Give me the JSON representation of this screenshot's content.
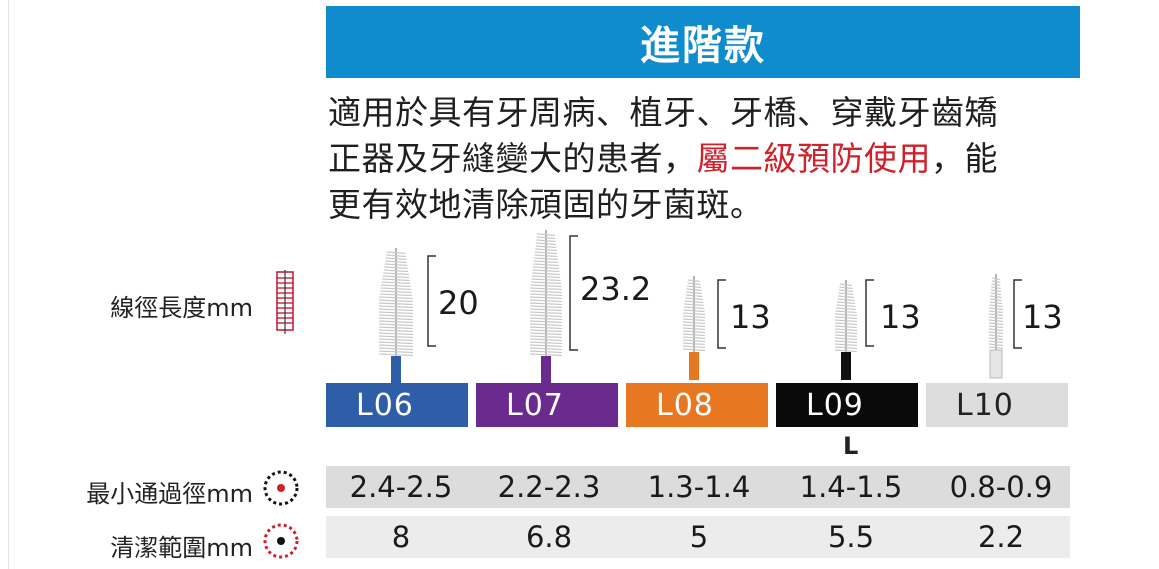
{
  "header": {
    "title": "進階款"
  },
  "description": {
    "line1": "適用於具有牙周病、植牙、牙橋、穿戴牙齒矯",
    "line2_prefix": "正器及牙縫變大的患者，",
    "line2_highlight": "屬二級預防使用",
    "line2_suffix": "，能",
    "line3": "更有效地清除頑固的牙菌斑。"
  },
  "labels": {
    "wire_length": "線徑長度mm",
    "min_passage": "最小通過徑mm",
    "cleaning_range": "清潔範圍mm"
  },
  "sizes": [
    {
      "code": "L06",
      "color": "#2f5ea8",
      "text_color": "#ffffff",
      "length": "20",
      "min_passage": "2.4-2.5",
      "cleaning_range": "8"
    },
    {
      "code": "L07",
      "color": "#6a2a8e",
      "text_color": "#ffffff",
      "length": "23.2",
      "min_passage": "2.2-2.3",
      "cleaning_range": "6.8"
    },
    {
      "code": "L08",
      "color": "#e87722",
      "text_color": "#ffffff",
      "length": "13",
      "min_passage": "1.3-1.4",
      "cleaning_range": "5"
    },
    {
      "code": "L09",
      "color": "#0a0a0a",
      "text_color": "#ffffff",
      "length": "13",
      "min_passage": "1.4-1.5",
      "cleaning_range": "5.5"
    },
    {
      "code": "L10",
      "color": "#dddddd",
      "text_color": "#222222",
      "length": "13",
      "min_passage": "0.8-0.9",
      "cleaning_range": "2.2"
    }
  ],
  "l09_suffix": "L",
  "colors": {
    "banner": "#0f8ccd",
    "highlight": "#d0202a",
    "ruler": "#c8102e"
  }
}
